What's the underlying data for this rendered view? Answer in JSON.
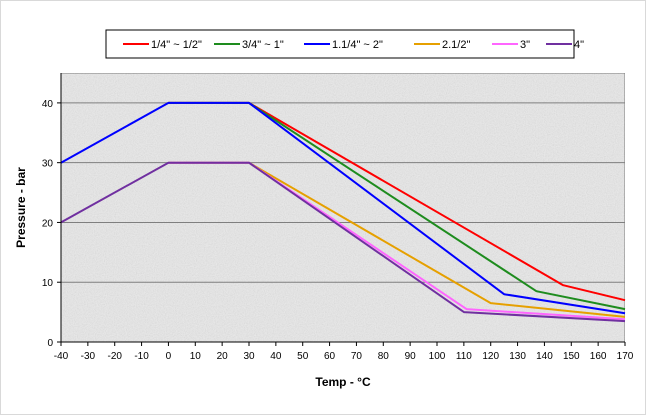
{
  "chart_data": {
    "type": "line",
    "title": "",
    "xlabel": "Temp - °C",
    "ylabel": "Pressure - bar",
    "xlim": [
      -40,
      170
    ],
    "ylim": [
      0,
      45
    ],
    "x_ticks": [
      -40,
      -30,
      -20,
      -10,
      0,
      10,
      20,
      30,
      40,
      50,
      60,
      70,
      80,
      90,
      100,
      110,
      120,
      130,
      140,
      150,
      160,
      170
    ],
    "y_ticks": [
      0,
      10,
      20,
      30,
      40
    ],
    "grid": "horizontal",
    "legend_position": "top",
    "series": [
      {
        "name": "1/4\" ~ 1/2\"",
        "color": "#ff0000",
        "points": [
          [
            0,
            40
          ],
          [
            30,
            40
          ],
          [
            147,
            9.5
          ],
          [
            170,
            7
          ]
        ]
      },
      {
        "name": "3/4\" ~ 1\"",
        "color": "#1e8c1e",
        "points": [
          [
            0,
            40
          ],
          [
            30,
            40
          ],
          [
            137,
            8.5
          ],
          [
            170,
            5.5
          ]
        ]
      },
      {
        "name": "1.1/4\" ~ 2\"",
        "color": "#0000ff",
        "points": [
          [
            -40,
            30
          ],
          [
            0,
            40
          ],
          [
            30,
            40
          ],
          [
            125,
            8
          ],
          [
            170,
            4.8
          ]
        ]
      },
      {
        "name": "2.1/2\"",
        "color": "#e6a000",
        "points": [
          [
            0,
            30
          ],
          [
            30,
            30
          ],
          [
            120,
            6.5
          ],
          [
            170,
            4.2
          ]
        ]
      },
      {
        "name": "3\"",
        "color": "#ff66ff",
        "points": [
          [
            0,
            30
          ],
          [
            30,
            30
          ],
          [
            111,
            5.5
          ],
          [
            170,
            3.8
          ]
        ]
      },
      {
        "name": "4\"",
        "color": "#7030a0",
        "points": [
          [
            -40,
            20
          ],
          [
            0,
            30
          ],
          [
            30,
            30
          ],
          [
            110,
            5
          ],
          [
            170,
            3.5
          ]
        ]
      }
    ]
  }
}
